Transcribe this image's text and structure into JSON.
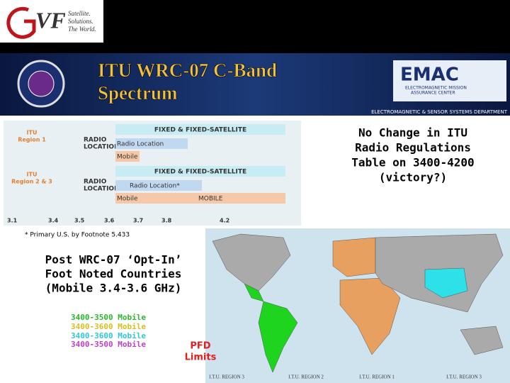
{
  "logo": {
    "brand": "VF",
    "tagline": [
      "Satellite.",
      "Solutions.",
      "The World."
    ]
  },
  "header": {
    "title_lines": [
      "ITU WRC-07 C-Band",
      "Spectrum"
    ],
    "emac": {
      "name": "EMAC",
      "subtitle": [
        "ELECTROMAGNETIC MISSION",
        "ASSURANCE CENTER"
      ]
    },
    "department": "ELECTROMAGNETIC & SENSOR SYSTEMS DEPARTMENT"
  },
  "band_plan": {
    "regions": [
      {
        "label": [
          "ITU",
          "Region 1"
        ],
        "radio_location": [
          "RADIO",
          "LOCATION"
        ],
        "fixed": "FIXED & FIXED-SATELLITE",
        "radio_location_band": "Radio Location",
        "mobile": [
          "Mobile"
        ]
      },
      {
        "label": [
          "ITU",
          "Region 2 & 3"
        ],
        "radio_location": [
          "RADIO",
          "LOCATION"
        ],
        "fixed": "FIXED & FIXED-SATELLITE",
        "radio_location_band": "Radio Location*",
        "mobile": [
          "Mobile",
          "MOBILE"
        ]
      }
    ],
    "frequency_ticks": [
      3.1,
      3.4,
      3.5,
      3.6,
      3.7,
      3.8,
      4.2
    ],
    "footnote": "* Primary U.S. by Footnote 5.433"
  },
  "note": [
    "No Change in ITU",
    "Radio Regulations",
    "Table on 3400-4200",
    "(victory?)"
  ],
  "opt_in": {
    "title": [
      "Post WRC-07 ‘Opt-In’",
      "Foot Noted Countries",
      "(Mobile 3.4-3.6 GHz)"
    ],
    "legend": [
      "3400-3500 Mobile",
      "3400-3600 Mobile",
      "3400-3600 Mobile",
      "3400-3500 Mobile"
    ],
    "pfd": [
      "PFD",
      "Limits"
    ]
  },
  "map": {
    "region_labels": [
      "I.T.U. REGION 3",
      "I.T.U. REGION 2",
      "I.T.U. REGION 1",
      "I.T.U. REGION 3"
    ]
  }
}
